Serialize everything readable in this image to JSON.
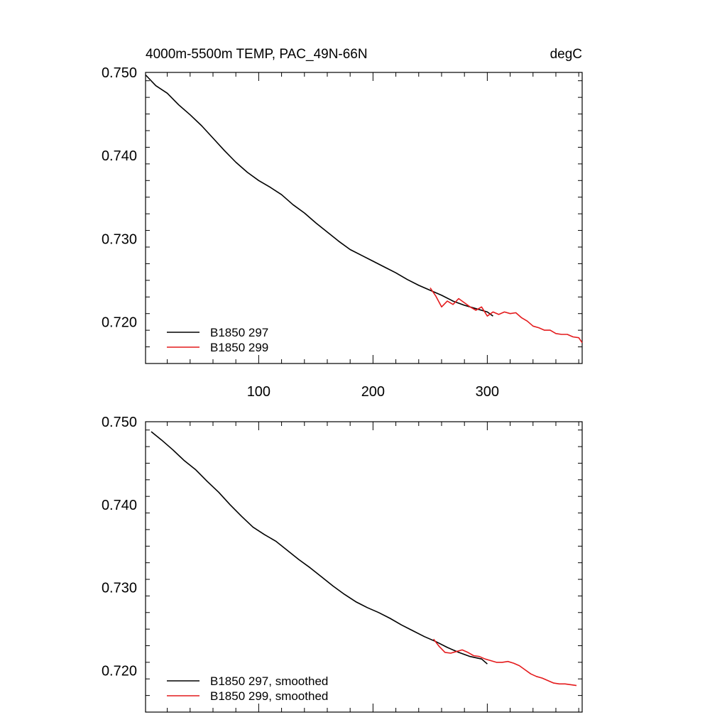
{
  "figure": {
    "title_left": "4000m-5500m TEMP, PAC_49N-66N",
    "title_right": "degC"
  },
  "colors": {
    "series_297": "#000000",
    "series_299": "#e41a1c",
    "axis": "#000000"
  },
  "chart_data": [
    {
      "type": "line",
      "title": "4000m-5500m TEMP, PAC_49N-66N",
      "units": "degC",
      "xlabel": "",
      "ylabel": "",
      "xlim": [
        1,
        383
      ],
      "ylim": [
        0.715,
        0.75
      ],
      "xticks": [
        100,
        200,
        300
      ],
      "xtick_labels": [
        "100",
        "200",
        "300"
      ],
      "yticks": [
        0.75,
        0.74,
        0.73,
        0.72
      ],
      "ytick_labels": [
        "0.750",
        "0.740",
        "0.730",
        "0.720"
      ],
      "legend_position": "bottom-left",
      "series": [
        {
          "name": "B1850 297",
          "smoothed": false,
          "x": [
            1,
            10,
            20,
            30,
            40,
            50,
            60,
            70,
            80,
            90,
            100,
            110,
            120,
            130,
            140,
            150,
            160,
            170,
            180,
            190,
            200,
            210,
            220,
            230,
            240,
            250,
            260,
            270,
            280,
            290,
            300,
            305
          ],
          "values": [
            0.7497,
            0.7484,
            0.7475,
            0.7461,
            0.7449,
            0.7436,
            0.7421,
            0.7406,
            0.7392,
            0.738,
            0.737,
            0.7362,
            0.7353,
            0.7341,
            0.7331,
            0.7319,
            0.7308,
            0.7297,
            0.7287,
            0.728,
            0.7273,
            0.7266,
            0.7259,
            0.7251,
            0.7244,
            0.7238,
            0.7232,
            0.7225,
            0.722,
            0.7216,
            0.7212,
            0.7207
          ]
        },
        {
          "name": "B1850 299",
          "smoothed": false,
          "x": [
            250,
            255,
            260,
            265,
            270,
            275,
            280,
            285,
            290,
            295,
            300,
            305,
            310,
            315,
            320,
            325,
            330,
            335,
            340,
            345,
            350,
            355,
            360,
            365,
            370,
            375,
            380,
            383
          ],
          "values": [
            0.7241,
            0.7231,
            0.7218,
            0.7225,
            0.7221,
            0.7228,
            0.7223,
            0.7218,
            0.7214,
            0.7218,
            0.7207,
            0.7212,
            0.7209,
            0.7212,
            0.721,
            0.7211,
            0.7205,
            0.7201,
            0.7195,
            0.7193,
            0.719,
            0.719,
            0.7186,
            0.7185,
            0.7185,
            0.7182,
            0.7181,
            0.7175
          ]
        }
      ]
    },
    {
      "type": "line",
      "title": "",
      "xlabel": "",
      "ylabel": "",
      "xlim": [
        1,
        383
      ],
      "ylim": [
        0.715,
        0.75
      ],
      "xticks": [
        100,
        200,
        300
      ],
      "xtick_labels": [],
      "yticks": [
        0.75,
        0.74,
        0.73,
        0.72
      ],
      "ytick_labels": [
        "0.750",
        "0.740",
        "0.730",
        "0.720"
      ],
      "legend_position": "bottom-left",
      "series": [
        {
          "name": "B1850 297, smoothed",
          "smoothed": true,
          "x": [
            6,
            15,
            25,
            35,
            45,
            55,
            65,
            75,
            85,
            95,
            105,
            115,
            125,
            135,
            145,
            155,
            165,
            175,
            185,
            195,
            205,
            215,
            225,
            235,
            245,
            255,
            265,
            275,
            285,
            295,
            300
          ],
          "values": [
            0.7488,
            0.7478,
            0.7466,
            0.7453,
            0.7442,
            0.7428,
            0.7415,
            0.74,
            0.7386,
            0.7373,
            0.7364,
            0.7356,
            0.7345,
            0.7334,
            0.7324,
            0.7313,
            0.7302,
            0.7292,
            0.7283,
            0.7276,
            0.727,
            0.7263,
            0.7255,
            0.7248,
            0.7241,
            0.7235,
            0.7228,
            0.7222,
            0.7217,
            0.7214,
            0.7208
          ]
        },
        {
          "name": "B1850 299, smoothed",
          "smoothed": true,
          "x": [
            253,
            258,
            263,
            268,
            273,
            278,
            283,
            288,
            293,
            298,
            303,
            308,
            313,
            318,
            323,
            328,
            333,
            338,
            343,
            348,
            353,
            358,
            363,
            368,
            373,
            378
          ],
          "values": [
            0.7238,
            0.7229,
            0.7222,
            0.7221,
            0.7223,
            0.7225,
            0.7222,
            0.7218,
            0.7217,
            0.7214,
            0.7212,
            0.721,
            0.721,
            0.7211,
            0.7209,
            0.7206,
            0.7201,
            0.7196,
            0.7193,
            0.7191,
            0.7188,
            0.7185,
            0.7184,
            0.7184,
            0.7183,
            0.7182
          ]
        }
      ]
    }
  ]
}
